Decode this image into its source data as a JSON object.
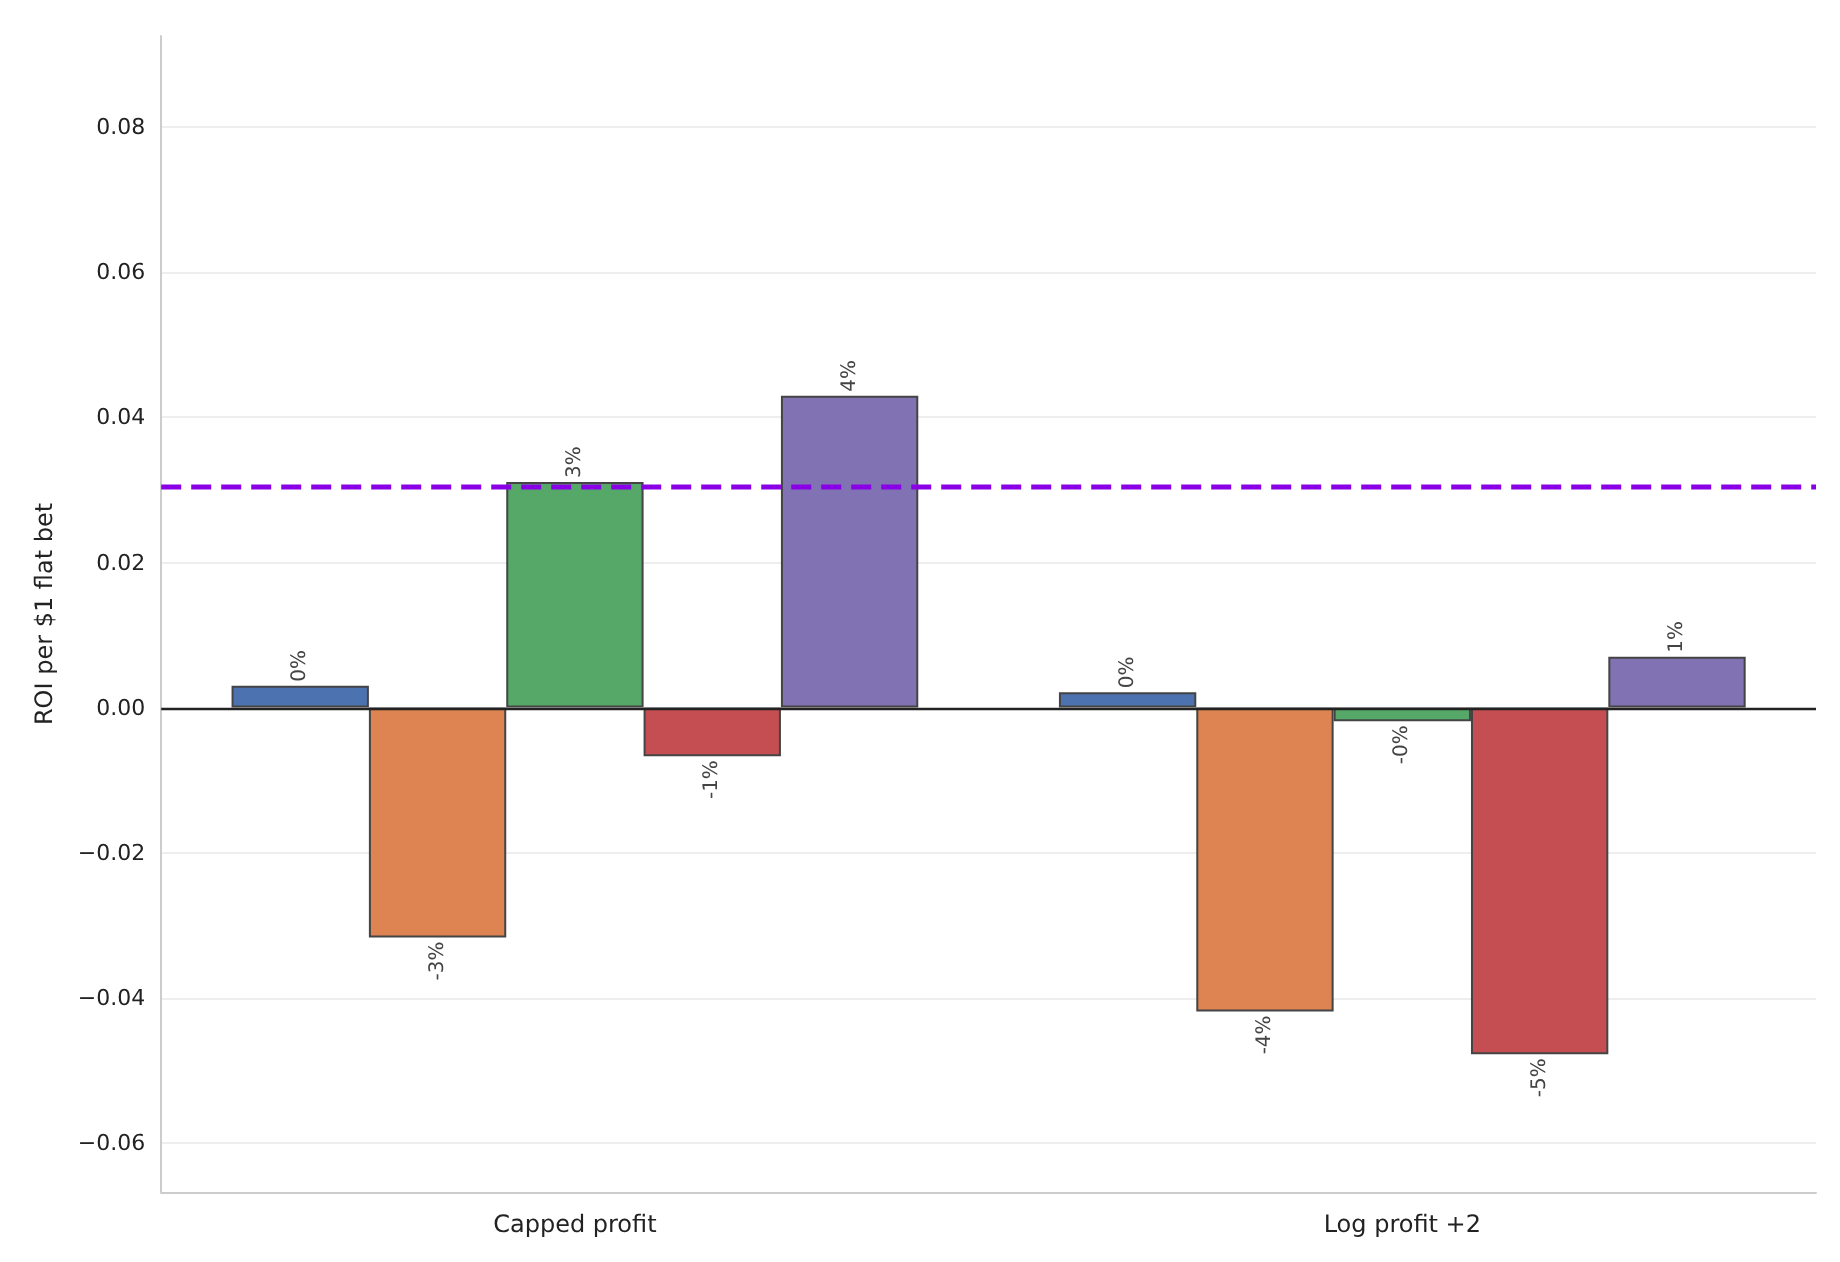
{
  "chart_data": {
    "type": "bar",
    "ylabel": "ROI per $1 flat bet",
    "categories": [
      "Capped profit",
      "Log profit +2"
    ],
    "series": [
      {
        "color": "#4c72b0",
        "values": [
          0.003,
          0.0021
        ],
        "value_labels": [
          "0%",
          "0%"
        ]
      },
      {
        "color": "#dd8452",
        "values": [
          -0.0317,
          -0.0419
        ],
        "value_labels": [
          "-3%",
          "-4%"
        ]
      },
      {
        "color": "#55a868",
        "values": [
          0.0311,
          -0.0019
        ],
        "value_labels": [
          "3%",
          "-0%"
        ]
      },
      {
        "color": "#c44e52",
        "values": [
          -0.0067,
          -0.0478
        ],
        "value_labels": [
          "-1%",
          "-5%"
        ]
      },
      {
        "color": "#8172b3",
        "values": [
          0.043,
          0.007
        ],
        "value_labels": [
          "4%",
          "1%"
        ]
      }
    ],
    "ylim": [
      -0.0668,
      0.0926
    ],
    "yticks": [
      {
        "value": -0.06,
        "label": "−0.06"
      },
      {
        "value": -0.04,
        "label": "−0.04"
      },
      {
        "value": -0.02,
        "label": "−0.02"
      },
      {
        "value": 0,
        "label": "0.00"
      },
      0.02,
      0.04,
      0.06,
      0.08
    ],
    "ref_lines": [
      {
        "axis": "y",
        "value": 0.0306,
        "color": "#8a00e6",
        "line_style": "dashed"
      },
      {
        "axis": "y",
        "value": 0,
        "color": "#222222",
        "line_style": "solid"
      }
    ],
    "grid": "y"
  }
}
